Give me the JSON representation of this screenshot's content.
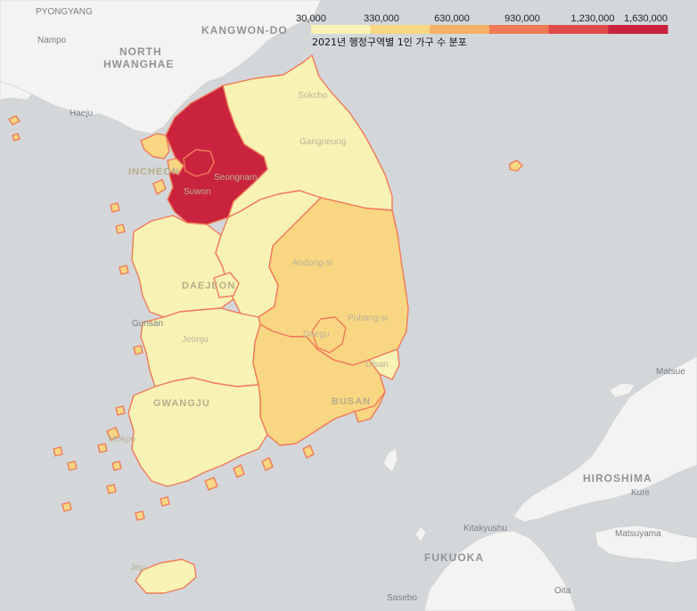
{
  "legend": {
    "title": "2021년 행정구역별 1인 가구 수 분포",
    "ticks": [
      "30,000",
      "330,000",
      "630,000",
      "930,000",
      "1,230,000",
      "1,630,000"
    ],
    "bin_colors": [
      "#f8f3b4",
      "#f8d682",
      "#f6b06a",
      "#ef7a55",
      "#e04a4a",
      "#c9233d"
    ]
  },
  "colors": {
    "sea": "#d4d7d9",
    "land": "#f3f3f1",
    "border": "#f07a5a"
  },
  "labels": {
    "pyongyang": "PYONGYANG",
    "nampo": "Nampo",
    "north_hwanghae": "NORTH",
    "north_hwanghae2": "HWANGHAE",
    "kangwon_do": "KANGWON-DO",
    "haeju": "Haeju",
    "sokcho": "Sokcho",
    "gangneung": "Gangneung",
    "incheon": "INCHEON",
    "seongnam": "Seongnam",
    "suwon": "Suwon",
    "daejeon": "DAEJEON",
    "andong": "Andong-si",
    "pohang": "Pohang-si",
    "daegu": "Daegu",
    "gunsan": "Gunsan",
    "jeonju": "Jeonju",
    "ulsan": "Ulsan",
    "busan": "BUSAN",
    "gwangju": "GWANGJU",
    "mokpo": "Mokpo",
    "jeju": "Jeju",
    "matsue": "Matsue",
    "hiroshima": "HIROSHIMA",
    "kure": "Kure",
    "kitakyushu": "Kitakyushu",
    "matsuyama": "Matsuyama",
    "fukuoka": "FUKUOKA",
    "sasebo": "Sasebo",
    "oita": "Oita"
  }
}
